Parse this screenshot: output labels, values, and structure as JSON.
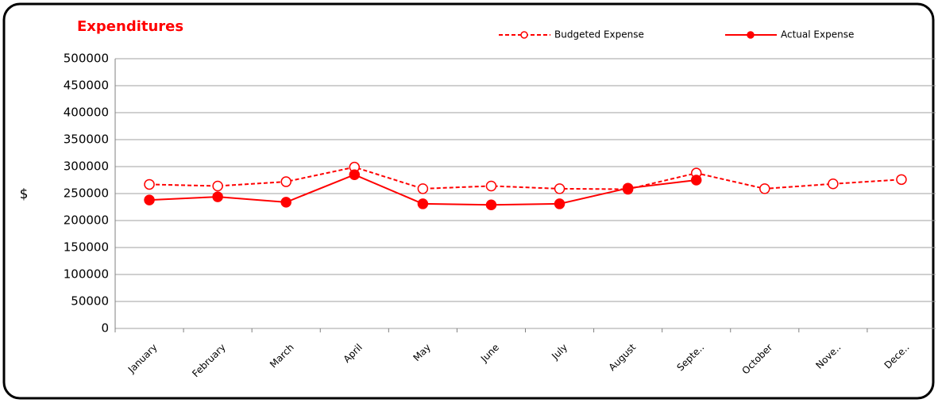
{
  "chart_data": {
    "type": "line",
    "title": "Expenditures",
    "y_label": "$",
    "categories": [
      "January",
      "February",
      "March",
      "April",
      "May",
      "June",
      "July",
      "August",
      "Septe..",
      "October",
      "Nove..",
      "Dece.."
    ],
    "series": [
      {
        "name": "Budgeted Expense",
        "color": "#ff0000",
        "dashed": true,
        "filled": false,
        "values": [
          267000,
          264000,
          272000,
          299000,
          259000,
          264000,
          259000,
          258000,
          288000,
          259000,
          268000,
          276000
        ]
      },
      {
        "name": "Actual Expense",
        "color": "#ff0000",
        "dashed": false,
        "filled": true,
        "values": [
          238000,
          244000,
          234000,
          285000,
          231000,
          229000,
          231000,
          260000,
          275000,
          null,
          null,
          null
        ]
      }
    ],
    "ylim": [
      0,
      500000
    ],
    "yticks": [
      0,
      50000,
      100000,
      150000,
      200000,
      250000,
      300000,
      350000,
      400000,
      450000,
      500000
    ],
    "grid": true,
    "legend": "top"
  }
}
